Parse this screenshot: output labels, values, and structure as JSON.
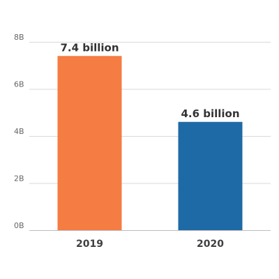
{
  "chart_data": {
    "type": "bar",
    "categories": [
      "2019",
      "2020"
    ],
    "values": [
      7.4,
      4.6
    ],
    "data_labels": [
      "7.4 billion",
      "4.6 billion"
    ],
    "bar_colors": [
      "#f57c43",
      "#1e6aa6"
    ],
    "y_ticks": [
      0,
      2,
      4,
      6,
      8
    ],
    "y_tick_labels": [
      "0B",
      "2B",
      "4B",
      "6B",
      "8B"
    ],
    "ylim": [
      0,
      8
    ],
    "grid": true,
    "title": "",
    "xlabel": "",
    "ylabel": ""
  }
}
